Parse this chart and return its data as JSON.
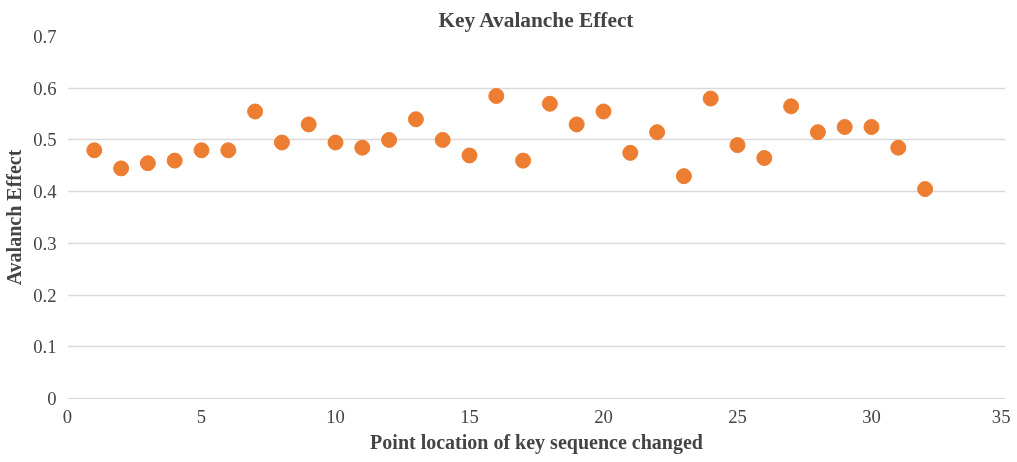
{
  "chart_data": {
    "type": "scatter",
    "title": "Key Avalanche Effect",
    "xlabel": "Point location of key sequence changed",
    "ylabel": "Avalanch Effect",
    "x": [
      1,
      2,
      3,
      4,
      5,
      6,
      7,
      8,
      9,
      10,
      11,
      12,
      13,
      14,
      15,
      16,
      17,
      18,
      19,
      20,
      21,
      22,
      23,
      24,
      25,
      26,
      27,
      28,
      29,
      30,
      31,
      32
    ],
    "series": [
      {
        "color": "#ed7d31",
        "values": [
          0.48,
          0.445,
          0.455,
          0.46,
          0.48,
          0.48,
          0.555,
          0.495,
          0.53,
          0.495,
          0.485,
          0.5,
          0.54,
          0.5,
          0.47,
          0.585,
          0.46,
          0.57,
          0.53,
          0.555,
          0.475,
          0.515,
          0.43,
          0.58,
          0.49,
          0.465,
          0.565,
          0.515,
          0.525,
          0.525,
          0.485,
          0.405
        ]
      }
    ],
    "xlim": [
      0,
      35
    ],
    "xticks": [
      0,
      5,
      10,
      15,
      20,
      25,
      30,
      35
    ],
    "ylim": [
      0,
      0.7
    ],
    "yticks": [
      0,
      0.1,
      0.2,
      0.3,
      0.4,
      0.5,
      0.6,
      0.7
    ],
    "grid": "y",
    "marker": "circle"
  }
}
